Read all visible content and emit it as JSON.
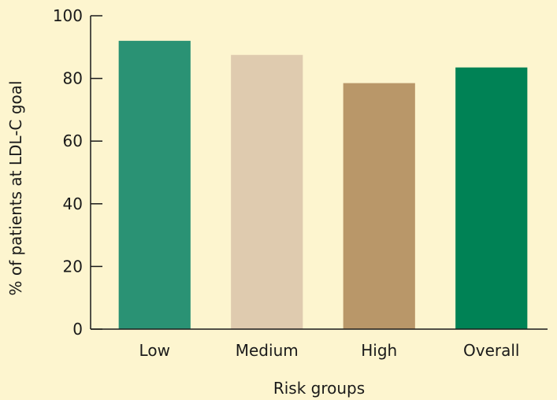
{
  "chart_data": {
    "type": "bar",
    "categories": [
      "Low",
      "Medium",
      "High",
      "Overall"
    ],
    "values": [
      92,
      87.5,
      78.5,
      83.5
    ],
    "colors": [
      "#2a9274",
      "#dfcbaf",
      "#b99769",
      "#008255"
    ],
    "xlabel": "Risk groups",
    "ylabel": "% of patients at LDL-C goal",
    "ylim": [
      0,
      100
    ],
    "yticks": [
      0,
      20,
      40,
      60,
      80,
      100
    ],
    "grid": false,
    "background": "#fdf5cf"
  }
}
